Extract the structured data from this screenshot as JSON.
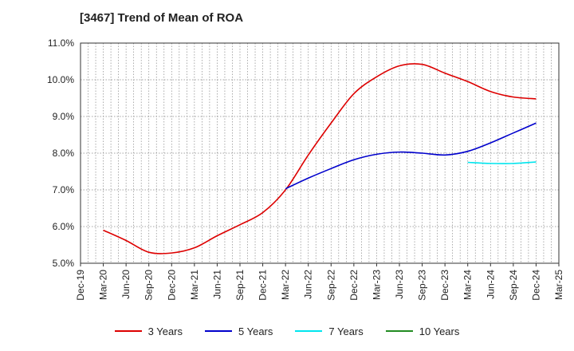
{
  "chart_data": {
    "type": "line",
    "title": "[3467]  Trend of Mean of ROA",
    "xlabel": "",
    "ylabel": "",
    "categories": [
      "Dec-19",
      "Mar-20",
      "Jun-20",
      "Sep-20",
      "Dec-20",
      "Mar-21",
      "Jun-21",
      "Sep-21",
      "Dec-21",
      "Mar-22",
      "Jun-22",
      "Sep-22",
      "Dec-22",
      "Mar-23",
      "Jun-23",
      "Sep-23",
      "Dec-23",
      "Mar-24",
      "Jun-24",
      "Sep-24",
      "Dec-24",
      "Mar-25"
    ],
    "yticks": [
      "5.0%",
      "6.0%",
      "7.0%",
      "8.0%",
      "9.0%",
      "10.0%",
      "11.0%"
    ],
    "ylim": [
      5.0,
      11.0
    ],
    "grid": true,
    "legend_position": "bottom",
    "series": [
      {
        "name": "3 Years",
        "color": "#dd0000",
        "values": [
          null,
          5.9,
          5.62,
          5.3,
          5.28,
          5.42,
          5.75,
          6.05,
          6.38,
          7.0,
          7.95,
          8.82,
          9.62,
          10.08,
          10.38,
          10.42,
          10.18,
          9.95,
          9.68,
          9.53,
          9.48,
          null
        ]
      },
      {
        "name": "5 Years",
        "color": "#0000cc",
        "values": [
          null,
          null,
          null,
          null,
          null,
          null,
          null,
          null,
          null,
          7.03,
          7.32,
          7.58,
          7.82,
          7.97,
          8.03,
          8.0,
          7.95,
          8.05,
          8.28,
          8.55,
          8.82,
          null
        ]
      },
      {
        "name": "7 Years",
        "color": "#00e5ee",
        "values": [
          null,
          null,
          null,
          null,
          null,
          null,
          null,
          null,
          null,
          null,
          null,
          null,
          null,
          null,
          null,
          null,
          null,
          7.75,
          7.72,
          7.72,
          7.76,
          null
        ]
      },
      {
        "name": "10 Years",
        "color": "#228b22",
        "values": [
          null,
          null,
          null,
          null,
          null,
          null,
          null,
          null,
          null,
          null,
          null,
          null,
          null,
          null,
          null,
          null,
          null,
          null,
          null,
          null,
          null,
          null
        ]
      }
    ]
  }
}
